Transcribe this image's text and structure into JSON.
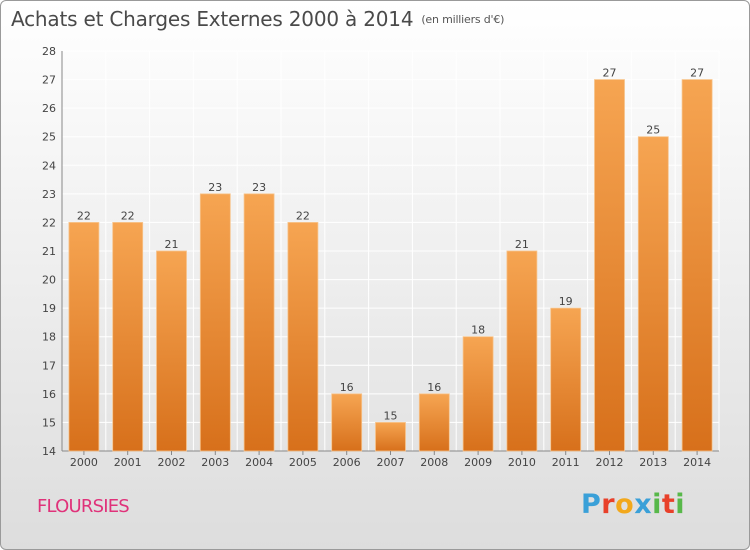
{
  "title": "Achats et Charges Externes 2000 à 2014",
  "subtitle": "(en milliers d'€)",
  "commune": "FLOURSIES",
  "brand": {
    "text": "Proxiti",
    "letter_colors": [
      "#3aa0d8",
      "#e8402a",
      "#f2a81c",
      "#3aa0d8",
      "#58b84a",
      "#e8402a",
      "#58b84a"
    ]
  },
  "colors": {
    "bar_light": "#f6a552",
    "bar_dark": "#d7701b",
    "bar_edge": "#f7c48c",
    "grid": "#ffffff",
    "axis_text": "#444444",
    "label_text": "#444444"
  },
  "chart_data": {
    "type": "bar",
    "categories": [
      "2000",
      "2001",
      "2002",
      "2003",
      "2004",
      "2005",
      "2006",
      "2007",
      "2008",
      "2009",
      "2010",
      "2011",
      "2012",
      "2013",
      "2014"
    ],
    "values": [
      22,
      22,
      21,
      23,
      23,
      22,
      16,
      15,
      16,
      18,
      21,
      19,
      27,
      25,
      27
    ],
    "ylim": [
      14,
      28
    ],
    "yticks": [
      14,
      15,
      16,
      17,
      18,
      19,
      20,
      21,
      22,
      23,
      24,
      25,
      26,
      27,
      28
    ],
    "grid": true,
    "data_labels": true
  }
}
